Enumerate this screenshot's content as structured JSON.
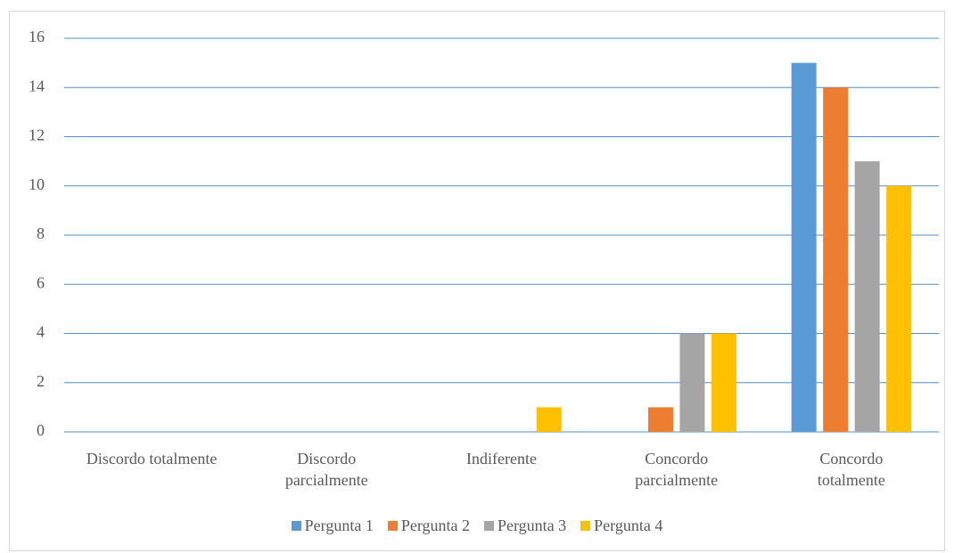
{
  "chart_data": {
    "type": "bar",
    "categories": [
      "Discordo totalmente",
      "Discordo\nparcialmente",
      "Indiferente",
      "Concordo\nparcialmente",
      "Concordo\ntotalmente"
    ],
    "series": [
      {
        "name": "Pergunta 1",
        "color": "#5b9bd5",
        "values": [
          0,
          0,
          0,
          0,
          15
        ]
      },
      {
        "name": "Pergunta 2",
        "color": "#ed7d31",
        "values": [
          0,
          0,
          0,
          1,
          14
        ]
      },
      {
        "name": "Pergunta 3",
        "color": "#a5a5a5",
        "values": [
          0,
          0,
          0,
          4,
          11
        ]
      },
      {
        "name": "Pergunta 4",
        "color": "#ffc000",
        "values": [
          0,
          0,
          1,
          4,
          10
        ]
      }
    ],
    "ylim": [
      0,
      16
    ],
    "yticks": [
      0,
      2,
      4,
      6,
      8,
      10,
      12,
      14,
      16
    ],
    "grid": true,
    "legend": "bottom"
  }
}
